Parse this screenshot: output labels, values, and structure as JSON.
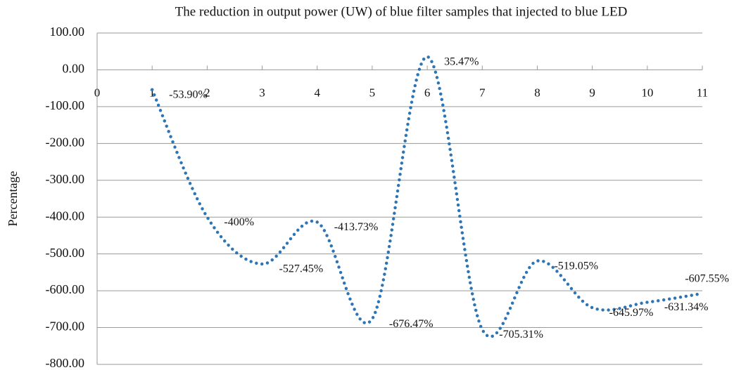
{
  "chart_data": {
    "type": "line",
    "title": "The reduction in output power (UW) of blue filter samples that injected to blue LED",
    "y_label": "Percentage",
    "x": [
      1,
      2,
      3,
      4,
      5,
      6,
      7,
      8,
      9,
      10,
      11
    ],
    "series": [
      {
        "color": "#2e75b6",
        "values": [
          -53.9,
          -400,
          -527.45,
          -413.73,
          -676.47,
          35.47,
          -705.31,
          -519.05,
          -645.97,
          -631.34,
          -607.55
        ],
        "value_labels": [
          "-53.90%",
          "-400%",
          "-527.45%",
          "-413.73%",
          "-676.47%",
          "35.47%",
          "-705.31%",
          "-519.05%",
          "-645.97%",
          "-631.34%",
          "-607.55%"
        ]
      }
    ],
    "xlim": [
      0,
      11
    ],
    "xticks": [
      0,
      1,
      2,
      3,
      4,
      5,
      6,
      7,
      8,
      9,
      10,
      11
    ],
    "ylim": [
      -800,
      100
    ],
    "yticks": [
      {
        "value": 100,
        "label": "100.00"
      },
      {
        "value": 0,
        "label": "0.00"
      },
      {
        "value": -100,
        "label": "-100.00"
      },
      {
        "value": -200,
        "label": "-200.00"
      },
      {
        "value": -300,
        "label": "-300.00"
      },
      {
        "value": -400,
        "label": "-400.00"
      },
      {
        "value": -500,
        "label": "-500.00"
      },
      {
        "value": -600,
        "label": "-600.00"
      },
      {
        "value": -700,
        "label": "-700.00"
      },
      {
        "value": -800,
        "label": "-800.00"
      }
    ],
    "grid": true,
    "smooth": true,
    "line_style": "dotted"
  }
}
